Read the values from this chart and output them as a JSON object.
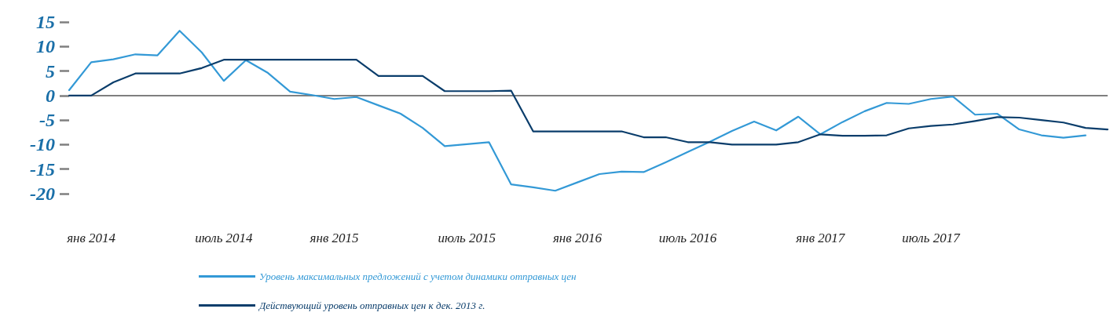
{
  "chart_data": {
    "type": "line",
    "categories": [
      null,
      "янв 2014",
      null,
      null,
      null,
      null,
      null,
      "июль 2014",
      null,
      null,
      null,
      null,
      "янв 2015",
      null,
      null,
      null,
      null,
      null,
      "июль 2015",
      null,
      null,
      null,
      null,
      "янв 2016",
      null,
      null,
      null,
      null,
      "июль 2016",
      null,
      null,
      null,
      null,
      null,
      "янв 2017",
      null,
      null,
      null,
      null,
      "июль 2017",
      null,
      null,
      null,
      null,
      null,
      null,
      null,
      null
    ],
    "series": [
      {
        "name": "Уровень максимальных предложений с учетом динамики отправных цен",
        "color": "#3399d6",
        "values": [
          1.1,
          6.8,
          7.4,
          8.4,
          8.2,
          13.2,
          8.8,
          3.0,
          7.2,
          4.6,
          0.8,
          0.1,
          -0.7,
          -0.3,
          -2.0,
          -3.7,
          -6.6,
          -10.3,
          -9.9,
          -9.5,
          -18.1,
          -18.7,
          -19.4,
          -17.7,
          -16.0,
          -15.5,
          -15.6,
          -13.6,
          -11.5,
          -9.4,
          -7.2,
          -5.3,
          -7.1,
          -4.3,
          -7.9,
          -5.4,
          -3.2,
          -1.5,
          -1.7,
          -0.7,
          -0.2,
          -3.9,
          -3.7,
          -6.9,
          -8.1,
          -8.6,
          -8.1,
          null
        ]
      },
      {
        "name": "Действующий уровень отправных цен к дек. 2013 г.",
        "color": "#0a3d6b",
        "values": [
          0,
          0,
          2.7,
          4.5,
          4.5,
          4.5,
          5.6,
          7.3,
          7.3,
          7.3,
          7.3,
          7.3,
          7.3,
          7.3,
          4.0,
          4.0,
          4.0,
          0.9,
          0.9,
          0.9,
          1.0,
          -7.3,
          -7.3,
          -7.3,
          -7.3,
          -7.3,
          -8.5,
          -8.5,
          -9.5,
          -9.5,
          -10.0,
          -10.0,
          -10.0,
          -9.5,
          -7.9,
          -8.2,
          -8.2,
          -8.1,
          -6.7,
          -6.2,
          -5.9,
          -5.2,
          -4.4,
          -4.5,
          -5.0,
          -5.5,
          -6.6,
          -6.9
        ]
      }
    ],
    "ylim": [
      -20,
      15
    ],
    "yticks": [
      -20,
      -15,
      -10,
      -5,
      0,
      5,
      10,
      15
    ],
    "ref_lines": [
      {
        "axis": "y",
        "value": 0,
        "color": "#7f7f7f"
      }
    ],
    "grid": false,
    "legend": "bottom",
    "marker": "none",
    "line_style": "solid"
  }
}
